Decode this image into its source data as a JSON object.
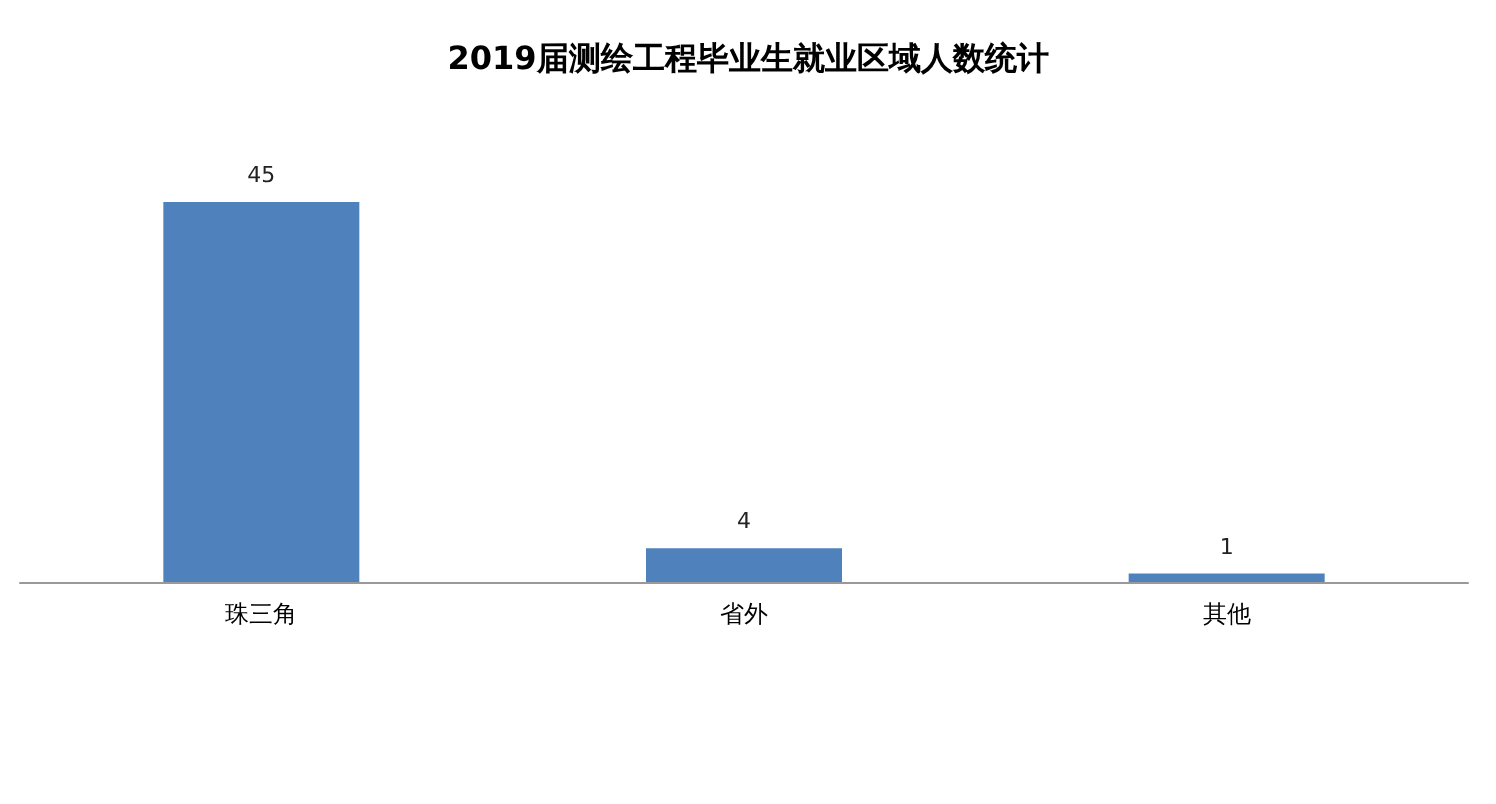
{
  "chart_data": {
    "type": "bar",
    "title": "2019届测绘工程毕业生就业区域人数统计",
    "categories": [
      "珠三角",
      "省外",
      "其他"
    ],
    "values": [
      45,
      4,
      1
    ],
    "color": "#4f81bd",
    "data_labels": true
  }
}
